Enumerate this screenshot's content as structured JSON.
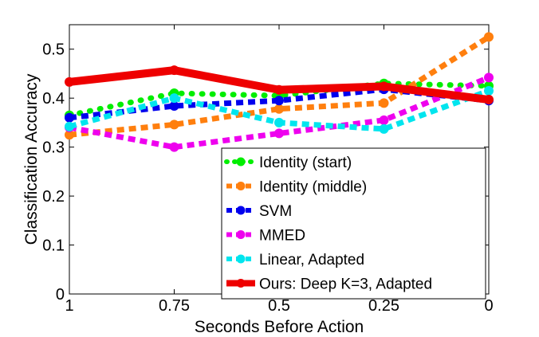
{
  "chart_data": {
    "type": "line",
    "title": "",
    "xlabel": "Seconds Before Action",
    "ylabel": "Classification Accuracy",
    "categories": [
      "1",
      "0.75",
      "0.5",
      "0.25",
      "0"
    ],
    "xlim": [
      1,
      0
    ],
    "ylim": [
      0,
      0.55
    ],
    "yticks": [
      "0",
      "0.1",
      "0.2",
      "0.3",
      "0.4",
      "0.5"
    ],
    "grid": false,
    "legend_position": "bottom-right",
    "series": [
      {
        "name": "Identity (start)",
        "color": "#00ee00",
        "style": "dotted",
        "values": [
          0.365,
          0.41,
          0.405,
          0.43,
          0.425
        ]
      },
      {
        "name": "Identity (middle)",
        "color": "#ff7f0e",
        "style": "dashed",
        "values": [
          0.325,
          0.346,
          0.378,
          0.39,
          0.525
        ]
      },
      {
        "name": "SVM",
        "color": "#0000ee",
        "style": "dashed",
        "values": [
          0.36,
          0.384,
          0.395,
          0.418,
          0.395
        ]
      },
      {
        "name": "MMED",
        "color": "#ee00ee",
        "style": "dashed",
        "values": [
          0.34,
          0.3,
          0.328,
          0.355,
          0.442
        ]
      },
      {
        "name": "Linear, Adapted",
        "color": "#00e5ee",
        "style": "dashed",
        "values": [
          0.342,
          0.4,
          0.35,
          0.337,
          0.415
        ]
      },
      {
        "name": "Ours: Deep K=3, Adapted",
        "color": "#ee0000",
        "style": "solid",
        "values": [
          0.433,
          0.457,
          0.417,
          0.424,
          0.397
        ]
      }
    ]
  }
}
